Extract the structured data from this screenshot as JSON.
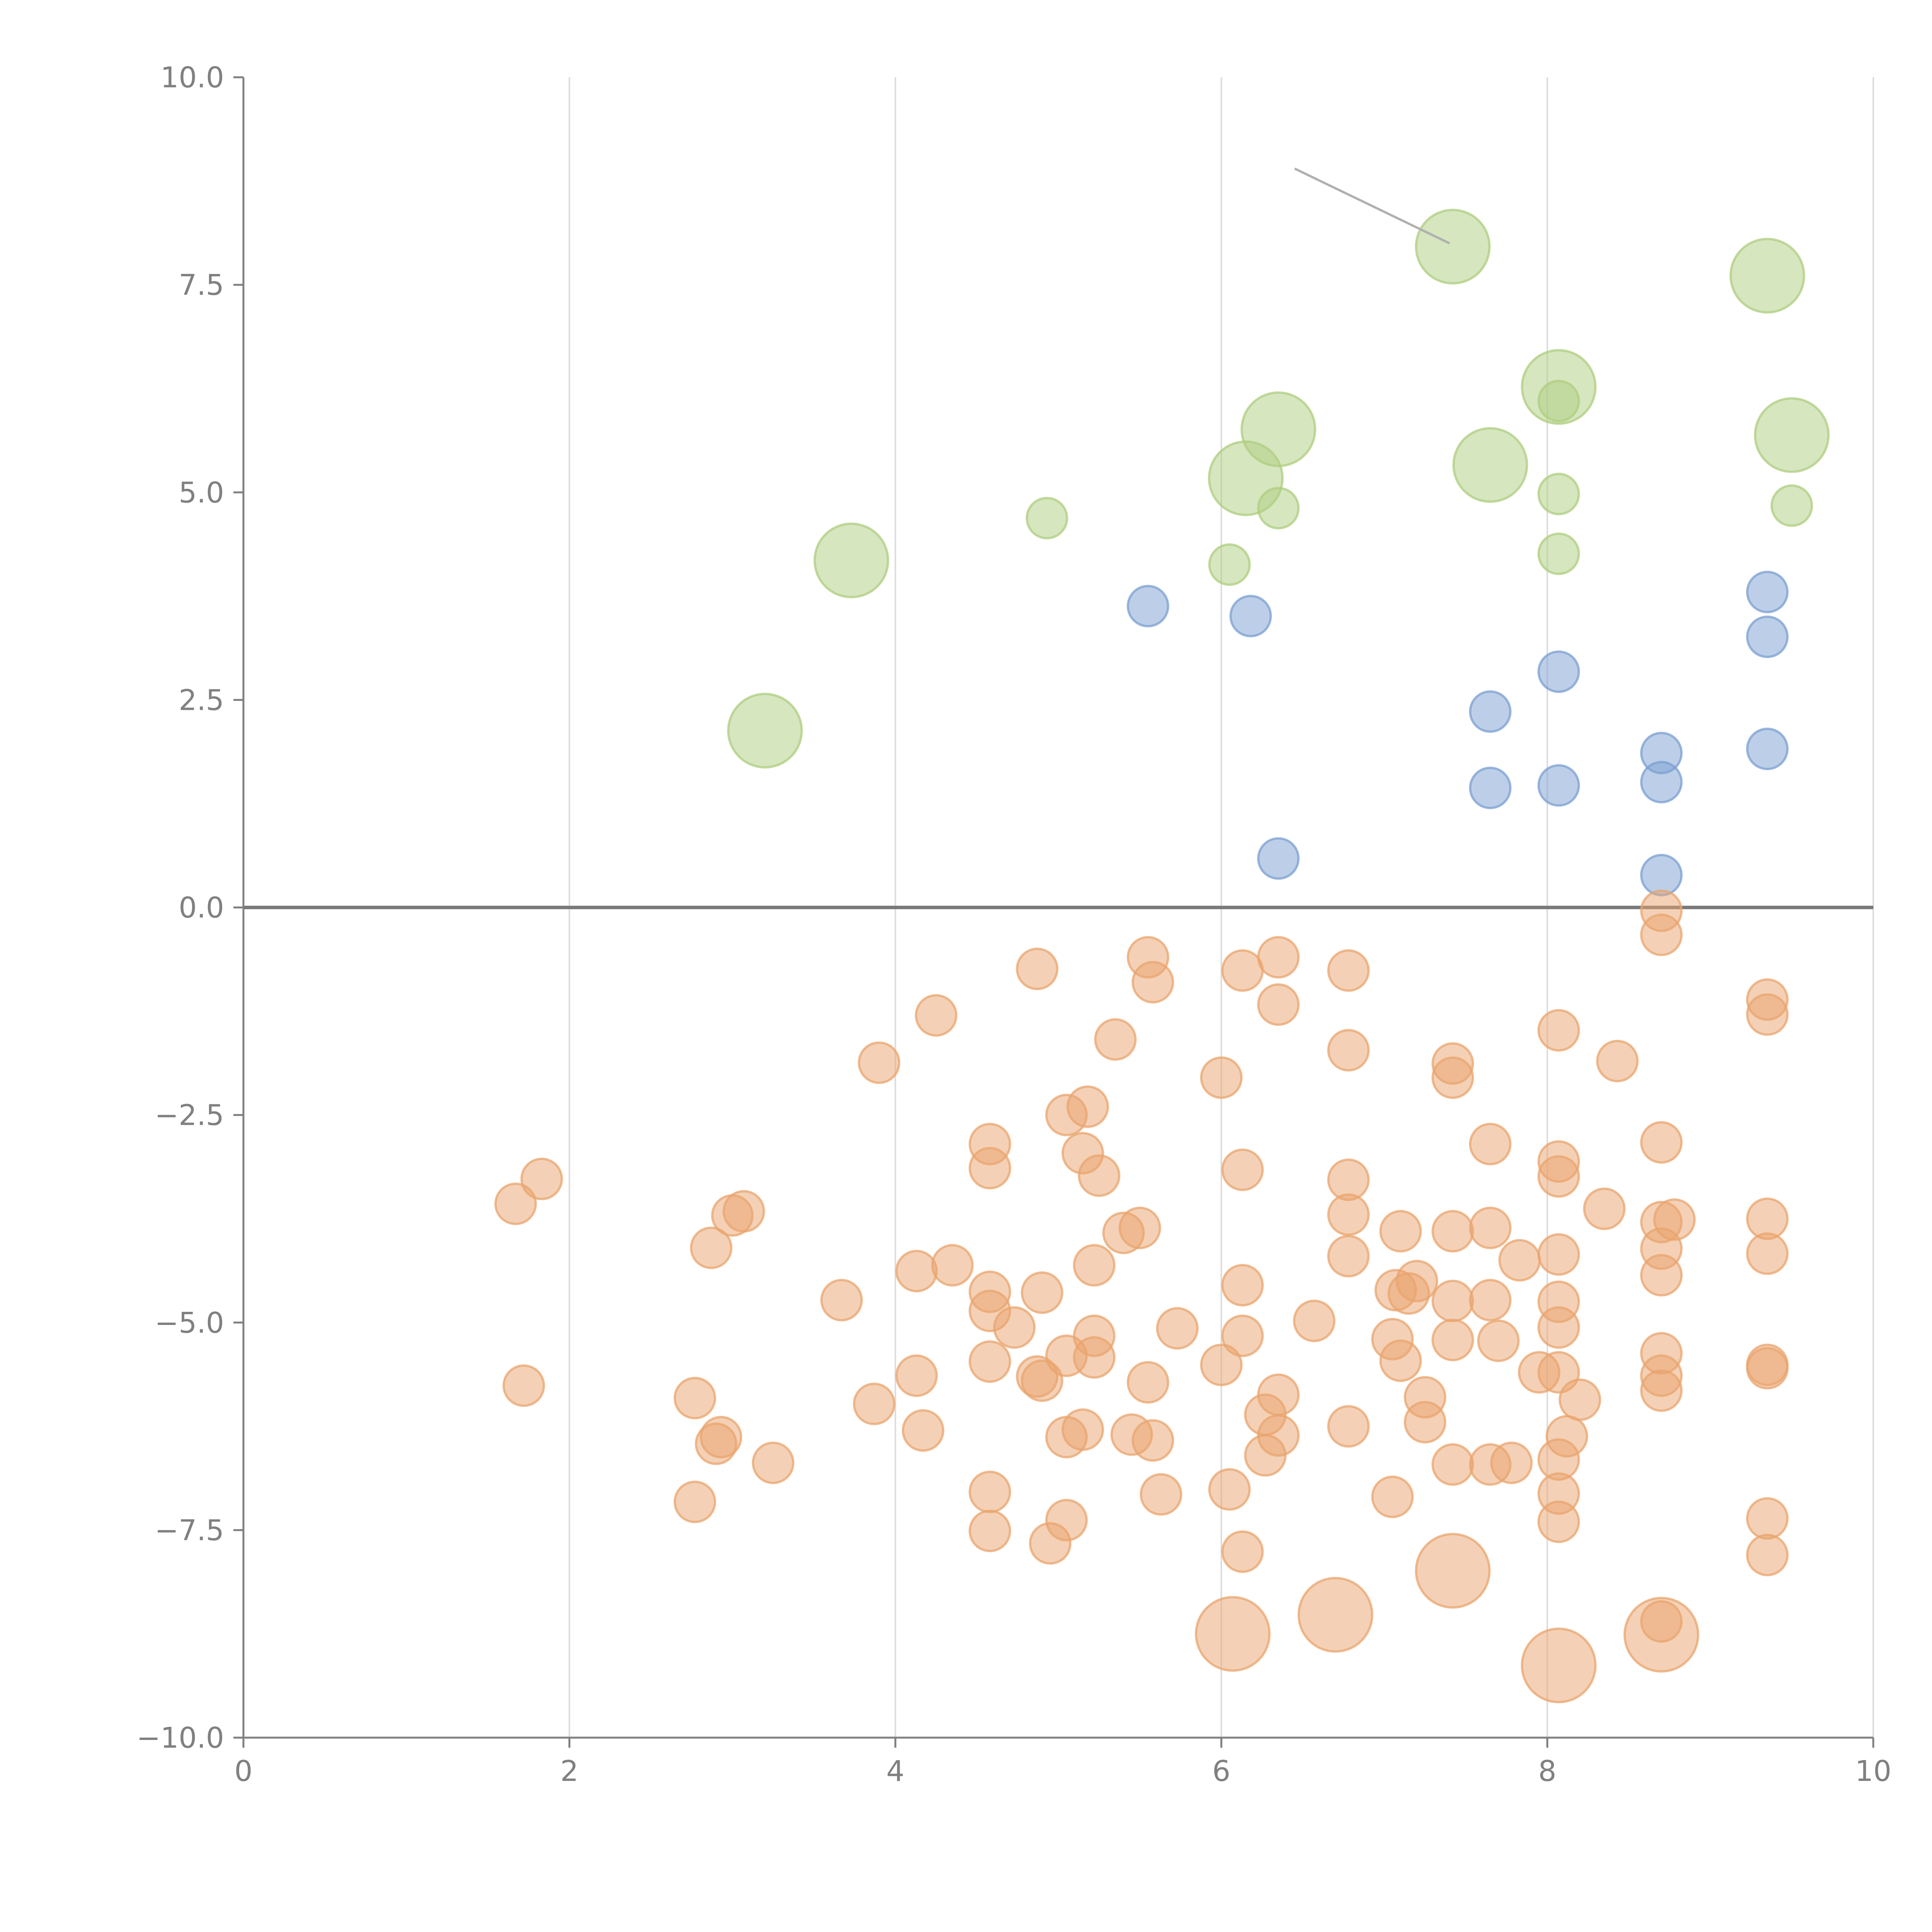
{
  "chart_data": {
    "type": "scatter",
    "title": "",
    "xlabel": "",
    "ylabel": "",
    "xlim": [
      0,
      10
    ],
    "ylim": [
      -10,
      10
    ],
    "grid": "vertical",
    "x_ticks": [
      "0",
      "2",
      "4",
      "6",
      "8",
      "10"
    ],
    "y_ticks": [
      "10.0",
      "7.5",
      "5.0",
      "2.5",
      "0.0",
      "−2.5",
      "−5.0",
      "−7.5",
      "−10.0"
    ],
    "x_tick_values": [
      0,
      2,
      4,
      6,
      8,
      10
    ],
    "y_tick_values": [
      10,
      7.5,
      5,
      2.5,
      0,
      -2.5,
      -5,
      -7.5,
      -10
    ],
    "reference_line_y": 0,
    "annotation_line": {
      "from": [
        6.45,
        8.9
      ],
      "to": [
        7.4,
        8.0
      ]
    },
    "series": [
      {
        "name": "blue",
        "color": "#7b9fd1",
        "size": 1,
        "points": [
          [
            5.55,
            3.63
          ],
          [
            6.18,
            3.51
          ],
          [
            6.35,
            0.59
          ],
          [
            7.65,
            2.36
          ],
          [
            7.65,
            1.44
          ],
          [
            8.07,
            2.84
          ],
          [
            8.07,
            1.47
          ],
          [
            8.7,
            1.86
          ],
          [
            8.7,
            1.51
          ],
          [
            8.7,
            0.39
          ],
          [
            9.35,
            3.8
          ],
          [
            9.35,
            3.26
          ],
          [
            9.35,
            1.91
          ]
        ]
      },
      {
        "name": "green-large",
        "color": "#aecd7f",
        "size": 2,
        "points": [
          [
            3.2,
            2.13
          ],
          [
            3.73,
            4.18
          ],
          [
            6.15,
            5.17
          ],
          [
            6.35,
            5.76
          ],
          [
            7.42,
            7.96
          ],
          [
            7.65,
            5.33
          ],
          [
            8.07,
            6.27
          ],
          [
            9.35,
            7.61
          ],
          [
            9.5,
            5.69
          ]
        ]
      },
      {
        "name": "green-small",
        "color": "#aecd7f",
        "size": 1,
        "points": [
          [
            4.93,
            4.69
          ],
          [
            6.05,
            4.13
          ],
          [
            6.35,
            4.81
          ],
          [
            8.07,
            6.1
          ],
          [
            8.07,
            4.98
          ],
          [
            8.07,
            4.26
          ],
          [
            9.5,
            4.84
          ]
        ]
      },
      {
        "name": "orange-small",
        "color": "#e9a46d",
        "size": 1,
        "points": [
          [
            1.67,
            -3.57
          ],
          [
            1.83,
            -3.27
          ],
          [
            1.72,
            -5.76
          ],
          [
            2.77,
            -5.91
          ],
          [
            2.77,
            -7.16
          ],
          [
            2.9,
            -6.46
          ],
          [
            2.93,
            -6.38
          ],
          [
            2.87,
            -4.1
          ],
          [
            3.0,
            -3.71
          ],
          [
            3.07,
            -3.66
          ],
          [
            3.25,
            -6.69
          ],
          [
            3.67,
            -4.73
          ],
          [
            3.87,
            -5.98
          ],
          [
            3.9,
            -1.87
          ],
          [
            4.13,
            -4.38
          ],
          [
            4.13,
            -5.64
          ],
          [
            4.17,
            -6.3
          ],
          [
            4.25,
            -1.3
          ],
          [
            4.35,
            -4.31
          ],
          [
            4.58,
            -2.85
          ],
          [
            4.58,
            -3.14
          ],
          [
            4.58,
            -4.63
          ],
          [
            4.58,
            -4.86
          ],
          [
            4.58,
            -5.47
          ],
          [
            4.58,
            -7.04
          ],
          [
            4.58,
            -7.51
          ],
          [
            4.73,
            -5.06
          ],
          [
            4.87,
            -0.74
          ],
          [
            4.87,
            -5.65
          ],
          [
            4.9,
            -4.64
          ],
          [
            4.9,
            -5.7
          ],
          [
            4.95,
            -7.66
          ],
          [
            5.05,
            -2.5
          ],
          [
            5.05,
            -5.4
          ],
          [
            5.05,
            -6.38
          ],
          [
            5.05,
            -7.38
          ],
          [
            5.15,
            -2.96
          ],
          [
            5.15,
            -6.29
          ],
          [
            5.18,
            -2.4
          ],
          [
            5.22,
            -4.31
          ],
          [
            5.22,
            -5.16
          ],
          [
            5.22,
            -5.42
          ],
          [
            5.25,
            -3.23
          ],
          [
            5.35,
            -1.59
          ],
          [
            5.4,
            -3.92
          ],
          [
            5.45,
            -6.35
          ],
          [
            5.5,
            -3.86
          ],
          [
            5.55,
            -0.6
          ],
          [
            5.55,
            -5.72
          ],
          [
            5.58,
            -0.9
          ],
          [
            5.58,
            -6.42
          ],
          [
            5.63,
            -7.07
          ],
          [
            5.73,
            -5.07
          ],
          [
            6.0,
            -2.05
          ],
          [
            6.0,
            -5.51
          ],
          [
            6.05,
            -7.01
          ],
          [
            6.13,
            -0.76
          ],
          [
            6.13,
            -3.16
          ],
          [
            6.13,
            -4.55
          ],
          [
            6.13,
            -5.16
          ],
          [
            6.13,
            -7.76
          ],
          [
            6.27,
            -6.11
          ],
          [
            6.27,
            -6.6
          ],
          [
            6.35,
            -0.6
          ],
          [
            6.35,
            -1.17
          ],
          [
            6.35,
            -5.87
          ],
          [
            6.35,
            -6.36
          ],
          [
            6.57,
            -4.98
          ],
          [
            6.78,
            -0.76
          ],
          [
            6.78,
            -1.72
          ],
          [
            6.78,
            -3.28
          ],
          [
            6.78,
            -3.7
          ],
          [
            6.78,
            -4.2
          ],
          [
            6.78,
            -6.25
          ],
          [
            7.05,
            -5.2
          ],
          [
            7.05,
            -7.1
          ],
          [
            7.07,
            -4.61
          ],
          [
            7.1,
            -3.9
          ],
          [
            7.1,
            -5.46
          ],
          [
            7.15,
            -4.65
          ],
          [
            7.2,
            -4.5
          ],
          [
            7.25,
            -5.9
          ],
          [
            7.25,
            -6.2
          ],
          [
            7.42,
            -1.88
          ],
          [
            7.42,
            -2.05
          ],
          [
            7.42,
            -3.9
          ],
          [
            7.42,
            -4.74
          ],
          [
            7.42,
            -5.21
          ],
          [
            7.42,
            -6.71
          ],
          [
            7.65,
            -2.85
          ],
          [
            7.65,
            -3.86
          ],
          [
            7.65,
            -4.73
          ],
          [
            7.65,
            -6.71
          ],
          [
            7.7,
            -5.22
          ],
          [
            7.78,
            -6.69
          ],
          [
            7.83,
            -4.25
          ],
          [
            7.95,
            -5.6
          ],
          [
            8.07,
            -1.48
          ],
          [
            8.07,
            -3.06
          ],
          [
            8.07,
            -3.24
          ],
          [
            8.07,
            -4.18
          ],
          [
            8.07,
            -4.75
          ],
          [
            8.07,
            -5.06
          ],
          [
            8.07,
            -5.6
          ],
          [
            8.07,
            -6.65
          ],
          [
            8.07,
            -7.06
          ],
          [
            8.07,
            -7.4
          ],
          [
            8.12,
            -6.37
          ],
          [
            8.2,
            -5.93
          ],
          [
            8.35,
            -3.63
          ],
          [
            8.43,
            -1.85
          ],
          [
            8.7,
            -0.04
          ],
          [
            8.7,
            -0.33
          ],
          [
            8.7,
            -2.83
          ],
          [
            8.7,
            -3.79
          ],
          [
            8.7,
            -4.11
          ],
          [
            8.7,
            -4.43
          ],
          [
            8.7,
            -5.37
          ],
          [
            8.7,
            -5.64
          ],
          [
            8.7,
            -5.82
          ],
          [
            8.7,
            -8.6
          ],
          [
            8.78,
            -3.76
          ],
          [
            9.35,
            -1.11
          ],
          [
            9.35,
            -1.29
          ],
          [
            9.35,
            -3.75
          ],
          [
            9.35,
            -4.17
          ],
          [
            9.35,
            -5.51
          ],
          [
            9.35,
            -5.55
          ],
          [
            9.35,
            -7.36
          ],
          [
            9.35,
            -7.8
          ]
        ]
      },
      {
        "name": "orange-large",
        "color": "#e9a46d",
        "size": 2,
        "points": [
          [
            6.07,
            -8.75
          ],
          [
            6.7,
            -8.52
          ],
          [
            7.42,
            -7.99
          ],
          [
            8.07,
            -9.13
          ],
          [
            8.7,
            -8.76
          ]
        ]
      }
    ]
  }
}
